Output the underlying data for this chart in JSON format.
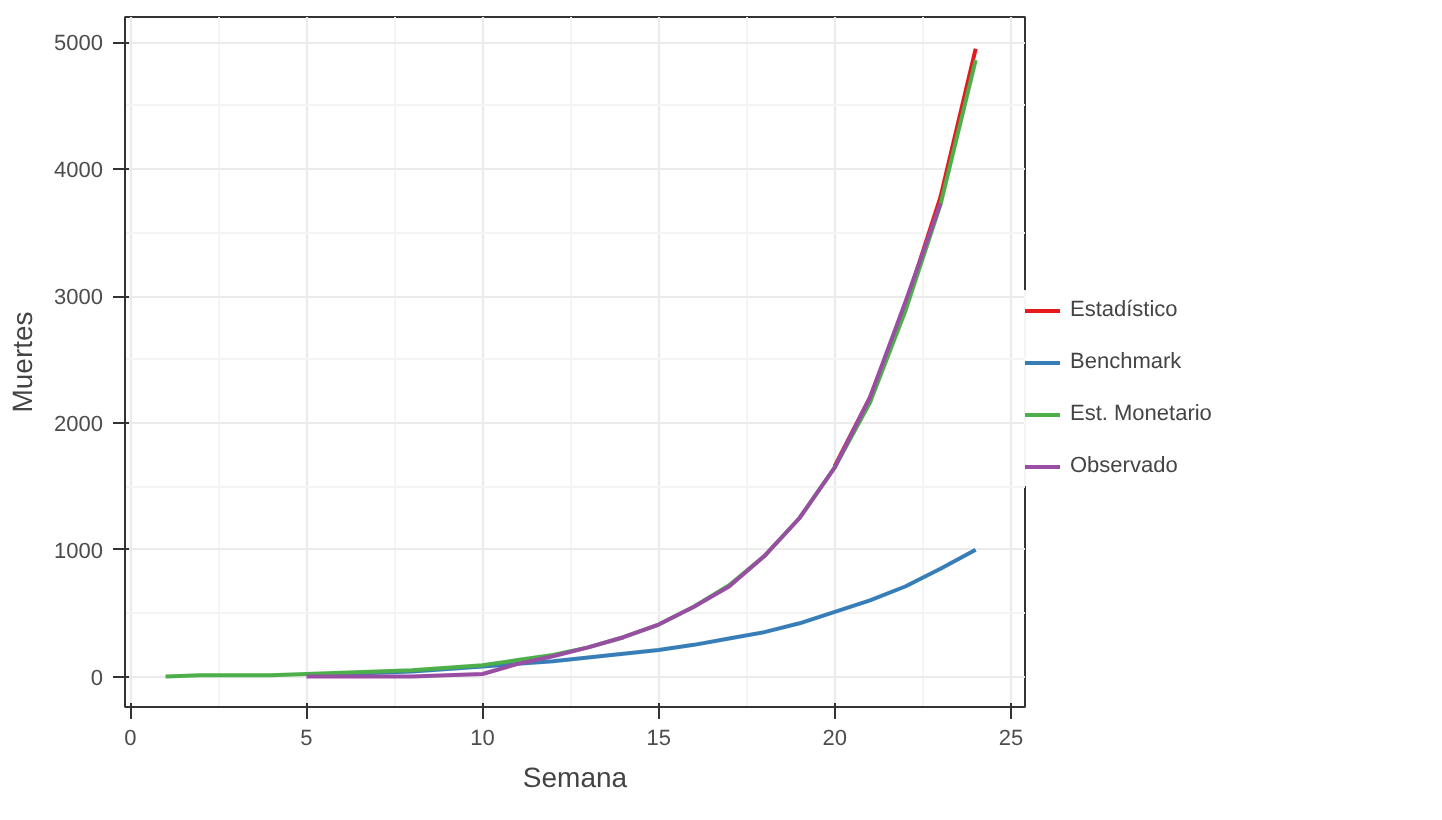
{
  "chart_data": {
    "type": "line",
    "xlabel": "Semana",
    "ylabel": "Muertes",
    "xlim": [
      -0.15,
      25.4
    ],
    "ylim": [
      -240,
      5200
    ],
    "xticks": [
      0,
      5,
      10,
      15,
      20,
      25
    ],
    "yticks": [
      0,
      1000,
      2000,
      3000,
      4000,
      5000
    ],
    "grid": true,
    "legend": "right",
    "line_style": "solid",
    "series": [
      {
        "name": "Estadístico",
        "color": "#e41a1c",
        "x": [
          20,
          21,
          22,
          23,
          24
        ],
        "values": [
          1660,
          2200,
          2920,
          3780,
          4950
        ]
      },
      {
        "name": "Benchmark",
        "color": "#377eb8",
        "x": [
          5,
          6,
          7,
          8,
          9,
          10,
          11,
          12,
          13,
          14,
          15,
          16,
          17,
          18,
          19,
          20,
          21,
          22,
          23,
          24
        ],
        "values": [
          20,
          20,
          30,
          40,
          60,
          80,
          100,
          120,
          150,
          180,
          210,
          250,
          300,
          350,
          420,
          510,
          600,
          710,
          850,
          1000
        ]
      },
      {
        "name": "Est. Monetario",
        "color": "#4daf4a",
        "x": [
          1,
          2,
          3,
          4,
          5,
          6,
          7,
          8,
          9,
          10,
          11,
          12,
          13,
          14,
          15,
          16,
          17,
          18,
          19,
          20,
          21,
          22,
          23,
          24
        ],
        "values": [
          0,
          10,
          10,
          10,
          20,
          30,
          40,
          50,
          70,
          90,
          130,
          170,
          230,
          310,
          410,
          550,
          720,
          950,
          1250,
          1650,
          2160,
          2880,
          3720,
          4860
        ]
      },
      {
        "name": "Observado",
        "color": "#984ea3",
        "x": [
          5,
          6,
          7,
          8,
          9,
          10,
          11,
          12,
          13,
          14,
          15,
          16,
          17,
          18,
          19,
          20,
          21,
          22,
          23
        ],
        "values": [
          0,
          0,
          0,
          0,
          10,
          20,
          100,
          160,
          230,
          310,
          410,
          550,
          710,
          950,
          1250,
          1650,
          2200,
          2950,
          3730
        ]
      }
    ]
  }
}
